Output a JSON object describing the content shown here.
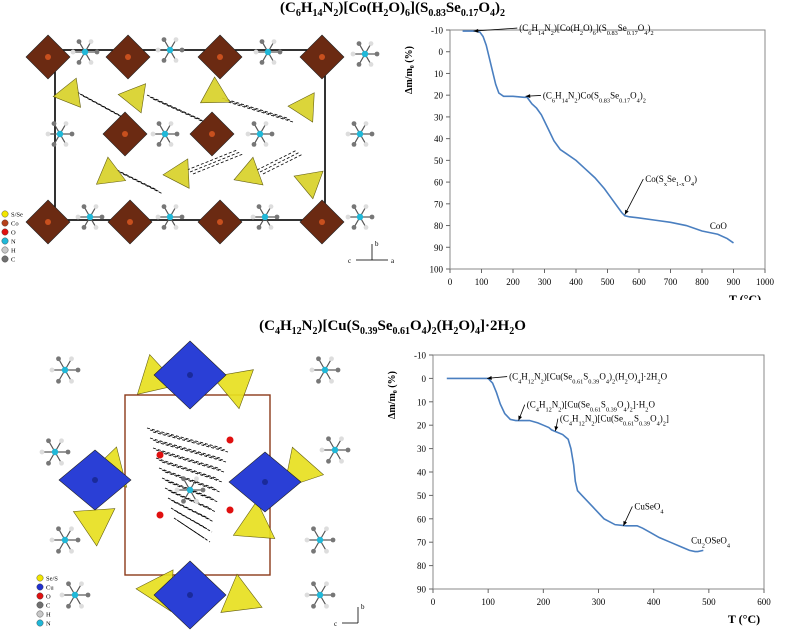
{
  "figure": {
    "top_title_parts": [
      {
        "t": "(C"
      },
      {
        "t": "6",
        "sub": true
      },
      {
        "t": "H"
      },
      {
        "t": "14",
        "sub": true
      },
      {
        "t": "N"
      },
      {
        "t": "2",
        "sub": true
      },
      {
        "t": ")[Co(H"
      },
      {
        "t": "2",
        "sub": true
      },
      {
        "t": "O)"
      },
      {
        "t": "6",
        "sub": true
      },
      {
        "t": "](S"
      },
      {
        "t": "0.83",
        "sub": true
      },
      {
        "t": "Se"
      },
      {
        "t": "0.17",
        "sub": true
      },
      {
        "t": "O"
      },
      {
        "t": "4",
        "sub": true
      },
      {
        "t": ")"
      },
      {
        "t": "2",
        "sub": true
      }
    ],
    "bottom_title_parts": [
      {
        "t": "(C"
      },
      {
        "t": "4",
        "sub": true
      },
      {
        "t": "H"
      },
      {
        "t": "12",
        "sub": true
      },
      {
        "t": "N"
      },
      {
        "t": "2",
        "sub": true
      },
      {
        "t": ")[Cu(S"
      },
      {
        "t": "0.39",
        "sub": true
      },
      {
        "t": "Se"
      },
      {
        "t": "0.61",
        "sub": true
      },
      {
        "t": "O"
      },
      {
        "t": "4",
        "sub": true
      },
      {
        "t": ")"
      },
      {
        "t": "2",
        "sub": true
      },
      {
        "t": "(H"
      },
      {
        "t": "2",
        "sub": true
      },
      {
        "t": "O)"
      },
      {
        "t": "4",
        "sub": true
      },
      {
        "t": "]·2H"
      },
      {
        "t": "2",
        "sub": true
      },
      {
        "t": "O"
      }
    ]
  },
  "structure_top": {
    "legend": [
      {
        "label": "S/Se",
        "color": "#f2e600"
      },
      {
        "label": "Co",
        "color": "#b5401a"
      },
      {
        "label": "O",
        "color": "#e01010"
      },
      {
        "label": "N",
        "color": "#20b8d8"
      },
      {
        "label": "H",
        "color": "#c8c8c8"
      },
      {
        "label": "C",
        "color": "#707070"
      }
    ],
    "axes": {
      "b": "b",
      "c": "c",
      "a": "a"
    },
    "colors": {
      "octahedron": "#6b2a12",
      "tetrahedron": "#d8d22a",
      "cell": "#000000"
    }
  },
  "structure_bottom": {
    "legend": [
      {
        "label": "Se/S",
        "color": "#f2e600"
      },
      {
        "label": "Cu",
        "color": "#2030d0"
      },
      {
        "label": "O",
        "color": "#e01010"
      },
      {
        "label": "C",
        "color": "#707070"
      },
      {
        "label": "H",
        "color": "#c8c8c8"
      },
      {
        "label": "N",
        "color": "#20b8d8"
      }
    ],
    "axes": {
      "b": "b",
      "c": "c"
    },
    "colors": {
      "octahedron": "#2a3fd6",
      "tetrahedron": "#e8e020",
      "cell": "#8b3a1a"
    }
  },
  "chart_data": [
    {
      "type": "line",
      "xlabel": "T (°C)",
      "ylabel": "Δm/m₀ (%)",
      "xlim": [
        0,
        1000
      ],
      "ylim": [
        -10,
        100
      ],
      "y_inverted": true,
      "xticks": [
        0,
        100,
        200,
        300,
        400,
        500,
        600,
        700,
        800,
        900,
        1000
      ],
      "yticks": [
        -10,
        0,
        10,
        20,
        30,
        40,
        50,
        60,
        70,
        80,
        90,
        100
      ],
      "line_color": "#4a7fc0",
      "series": [
        {
          "x": [
            40,
            60,
            80,
            95,
            105,
            115,
            125,
            135,
            145,
            155,
            170,
            200,
            235,
            245,
            260,
            275,
            290,
            310,
            330,
            350,
            370,
            400,
            430,
            460,
            490,
            510,
            530,
            545,
            555,
            570,
            600,
            650,
            700,
            750,
            800,
            850,
            880,
            900
          ],
          "y": [
            -9.5,
            -9.5,
            -9.5,
            -9,
            -7,
            -3,
            3,
            9,
            15,
            19,
            20.5,
            20.5,
            21,
            21,
            24,
            26,
            29,
            35,
            41,
            45,
            47,
            50,
            54,
            58,
            63,
            67,
            71,
            74,
            75.5,
            76,
            76.5,
            77.5,
            78.5,
            80,
            82.5,
            84,
            86,
            88
          ]
        }
      ],
      "annotations": [
        {
          "parts": [
            {
              "t": "(C"
            },
            {
              "t": "6",
              "sub": true
            },
            {
              "t": "H"
            },
            {
              "t": "14",
              "sub": true
            },
            {
              "t": "N"
            },
            {
              "t": "2",
              "sub": true
            },
            {
              "t": ")[Co(H"
            },
            {
              "t": "2",
              "sub": true
            },
            {
              "t": "O)"
            },
            {
              "t": "6",
              "sub": true
            },
            {
              "t": "](S"
            },
            {
              "t": "0.83",
              "sub": true
            },
            {
              "t": "Se"
            },
            {
              "t": "0.17",
              "sub": true
            },
            {
              "t": "O"
            },
            {
              "t": "4",
              "sub": true
            },
            {
              "t": ")"
            },
            {
              "t": "2",
              "sub": true
            }
          ],
          "point": [
            75,
            -9.5
          ],
          "text_at": [
            220,
            -9.5
          ]
        },
        {
          "parts": [
            {
              "t": "(C"
            },
            {
              "t": "6",
              "sub": true
            },
            {
              "t": "H"
            },
            {
              "t": "14",
              "sub": true
            },
            {
              "t": "N"
            },
            {
              "t": "2",
              "sub": true
            },
            {
              "t": ")Co(S"
            },
            {
              "t": "0.83",
              "sub": true
            },
            {
              "t": "Se"
            },
            {
              "t": "0.17",
              "sub": true
            },
            {
              "t": "O"
            },
            {
              "t": "4",
              "sub": true
            },
            {
              "t": ")"
            },
            {
              "t": "2",
              "sub": true
            }
          ],
          "point": [
            240,
            20.5
          ],
          "text_at": [
            295,
            21.5
          ]
        },
        {
          "parts": [
            {
              "t": "Co(S"
            },
            {
              "t": "x",
              "sub": true
            },
            {
              "t": "Se"
            },
            {
              "t": "1-x",
              "sub": true
            },
            {
              "t": "O"
            },
            {
              "t": "4",
              "sub": true
            },
            {
              "t": ")"
            }
          ],
          "point": [
            555,
            75
          ],
          "text_at": [
            620,
            60
          ]
        },
        {
          "parts": [
            {
              "t": "CoO"
            }
          ],
          "point": null,
          "text_at": [
            825,
            81.5
          ]
        }
      ]
    },
    {
      "type": "line",
      "xlabel": "T (°C)",
      "ylabel": "Δm/m₀ (%)",
      "xlim": [
        0,
        600
      ],
      "ylim": [
        -10,
        90
      ],
      "y_inverted": true,
      "xticks": [
        0,
        100,
        200,
        300,
        400,
        500,
        600
      ],
      "yticks": [
        -10,
        0,
        10,
        20,
        30,
        40,
        50,
        60,
        70,
        80,
        90
      ],
      "line_color": "#4a7fc0",
      "series": [
        {
          "x": [
            25,
            50,
            90,
            100,
            108,
            115,
            122,
            130,
            140,
            150,
            160,
            175,
            190,
            200,
            210,
            215,
            225,
            235,
            245,
            250,
            255,
            258,
            262,
            270,
            290,
            310,
            330,
            350,
            370,
            380,
            395,
            410,
            430,
            450,
            465,
            475,
            480,
            490
          ],
          "y": [
            0,
            0,
            0,
            0,
            2,
            6,
            11,
            15,
            17.5,
            18,
            18,
            18,
            19,
            20,
            21,
            22,
            23,
            24,
            26,
            30,
            37,
            44,
            48,
            50,
            55,
            60,
            62.5,
            63,
            63,
            64,
            66,
            68,
            70,
            72,
            73.5,
            74,
            74,
            73.5
          ]
        }
      ],
      "annotations": [
        {
          "parts": [
            {
              "t": "(C"
            },
            {
              "t": "4",
              "sub": true
            },
            {
              "t": "H"
            },
            {
              "t": "12",
              "sub": true
            },
            {
              "t": "N"
            },
            {
              "t": "2",
              "sub": true
            },
            {
              "t": ")[Cu(Se"
            },
            {
              "t": "0.61",
              "sub": true
            },
            {
              "t": "S"
            },
            {
              "t": "0.39",
              "sub": true
            },
            {
              "t": "O"
            },
            {
              "t": "4",
              "sub": true
            },
            {
              "t": ")"
            },
            {
              "t": "2",
              "sub": true
            },
            {
              "t": "(H"
            },
            {
              "t": "2",
              "sub": true
            },
            {
              "t": "O)"
            },
            {
              "t": "4",
              "sub": true
            },
            {
              "t": "]·2H"
            },
            {
              "t": "2",
              "sub": true
            },
            {
              "t": "O"
            }
          ],
          "point": [
            98,
            0
          ],
          "text_at": [
            138,
            0.5
          ]
        },
        {
          "parts": [
            {
              "t": "(C"
            },
            {
              "t": "4",
              "sub": true
            },
            {
              "t": "H"
            },
            {
              "t": "12",
              "sub": true
            },
            {
              "t": "N"
            },
            {
              "t": "2",
              "sub": true
            },
            {
              "t": ")[Cu(Se"
            },
            {
              "t": "0.61",
              "sub": true
            },
            {
              "t": "S"
            },
            {
              "t": "0.39",
              "sub": true
            },
            {
              "t": "O"
            },
            {
              "t": "4",
              "sub": true
            },
            {
              "t": ")"
            },
            {
              "t": "2",
              "sub": true
            },
            {
              "t": "]·H"
            },
            {
              "t": "2",
              "sub": true
            },
            {
              "t": "O"
            }
          ],
          "point": [
            155,
            18
          ],
          "text_at": [
            170,
            12.5
          ]
        },
        {
          "parts": [
            {
              "t": "(C"
            },
            {
              "t": "4",
              "sub": true
            },
            {
              "t": "H"
            },
            {
              "t": "12",
              "sub": true
            },
            {
              "t": "N"
            },
            {
              "t": "2",
              "sub": true
            },
            {
              "t": ")[Cu(Se"
            },
            {
              "t": "0.61",
              "sub": true
            },
            {
              "t": "S"
            },
            {
              "t": "0.39",
              "sub": true
            },
            {
              "t": "O"
            },
            {
              "t": "4",
              "sub": true
            },
            {
              "t": ")"
            },
            {
              "t": "2",
              "sub": true
            },
            {
              "t": "]"
            }
          ],
          "point": [
            222,
            22.5
          ],
          "text_at": [
            230,
            18.5
          ]
        },
        {
          "parts": [
            {
              "t": "CuSeO"
            },
            {
              "t": "4",
              "sub": true
            }
          ],
          "point": [
            345,
            63
          ],
          "text_at": [
            365,
            56
          ]
        },
        {
          "parts": [
            {
              "t": "Cu"
            },
            {
              "t": "2",
              "sub": true
            },
            {
              "t": "OSeO"
            },
            {
              "t": "4",
              "sub": true
            }
          ],
          "point": null,
          "text_at": [
            468,
            70.5
          ]
        }
      ]
    }
  ]
}
